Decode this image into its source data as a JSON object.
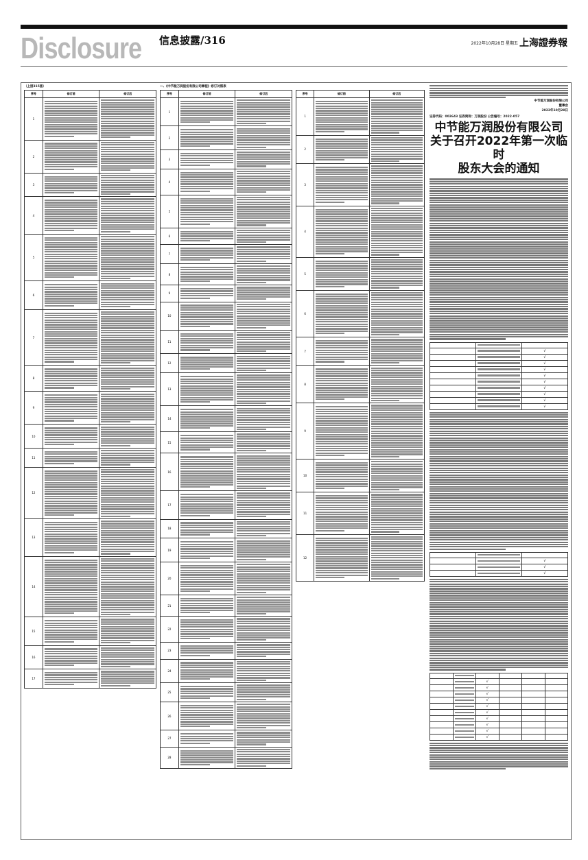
{
  "header": {
    "brand": "Disclosure",
    "section": "信息披露/316",
    "dateline": "2022年10月28日 星期五",
    "paper": "上海證券報"
  },
  "table_headers": [
    "序号",
    "修订前",
    "修订后"
  ],
  "col1": {
    "caption": "（上接315版）",
    "rows": [
      "1",
      "2",
      "3",
      "4",
      "5",
      "6",
      "7",
      "8",
      "9",
      "10",
      "11",
      "12",
      "13",
      "14",
      "15",
      "16",
      "17"
    ]
  },
  "col2": {
    "caption": "一、《中节能万润股份有限公司章程》修订对照表",
    "rows": [
      "1",
      "2",
      "3",
      "4",
      "5",
      "6",
      "7",
      "8",
      "9",
      "10",
      "11",
      "12",
      "13",
      "14",
      "15",
      "16",
      "17",
      "18",
      "19",
      "20",
      "21",
      "22",
      "23",
      "24",
      "25",
      "26",
      "27",
      "28"
    ]
  },
  "col3": {
    "rows": [
      "1",
      "2",
      "3",
      "4",
      "5",
      "6",
      "7",
      "8",
      "9",
      "10",
      "11",
      "12"
    ]
  },
  "notice": {
    "sign_company": "中节能万润股份有限公司",
    "sign_board": "董事会",
    "sign_date": "2022年10月28日",
    "codes": "证券代码：002643    证券简称：万润股份    公告编号：2022-057",
    "headline": [
      "中节能万润股份有限公司",
      "关于召开2022年第一次临时",
      "股东大会的通知"
    ],
    "check": "√"
  },
  "colors": {
    "brand_gray": "#b8b8b8",
    "rule": "#111111"
  }
}
